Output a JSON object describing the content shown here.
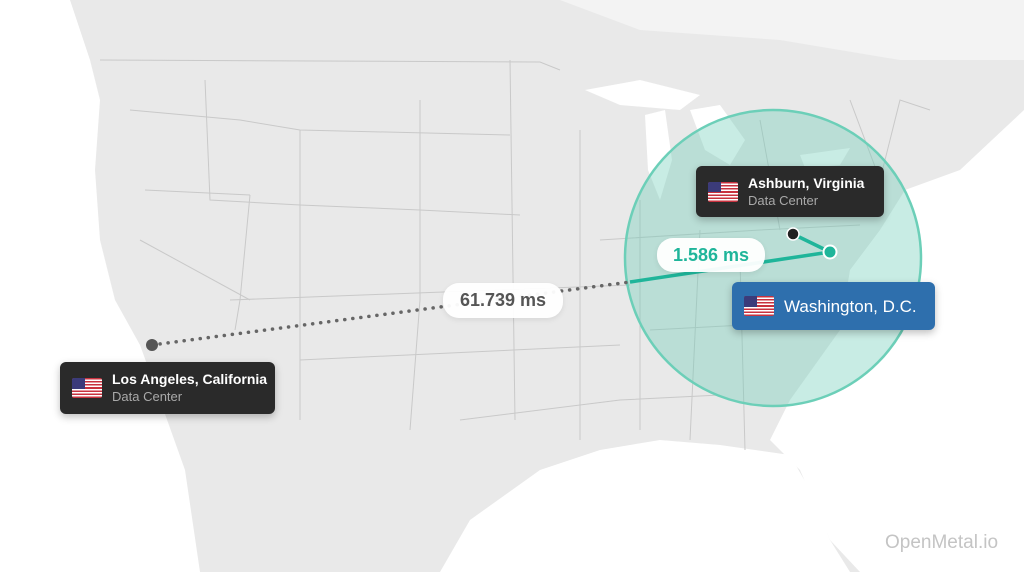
{
  "locations": {
    "los_angeles": {
      "title": "Los Angeles, California",
      "subtitle": "Data Center"
    },
    "ashburn": {
      "title": "Ashburn, Virginia",
      "subtitle": "Data Center"
    },
    "washington": {
      "title": "Washington, D.C."
    }
  },
  "latencies": {
    "la_to_dc": "61.739 ms",
    "ashburn_to_dc": "1.586 ms"
  },
  "watermark": "OpenMetal.io",
  "colors": {
    "land": "#e9e9e9",
    "water": "#ffffff",
    "accent": "#1fb59a",
    "highlight_card": "#2e6fad",
    "dark_card": "#2a2a2a"
  }
}
